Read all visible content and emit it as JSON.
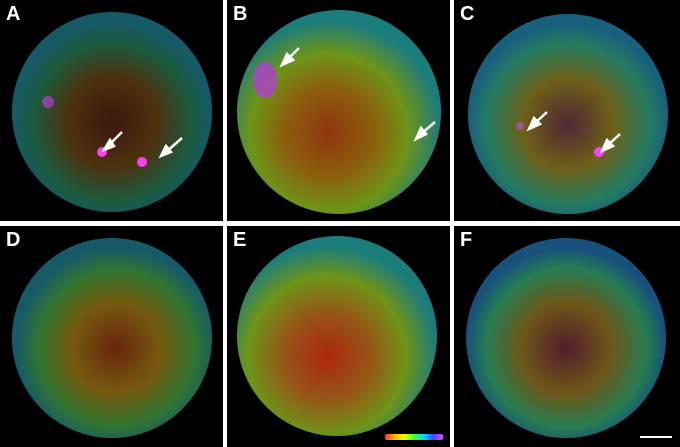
{
  "figure": {
    "panels": [
      {
        "label": "A",
        "arrows": 2
      },
      {
        "label": "B",
        "arrows": 2
      },
      {
        "label": "C",
        "arrows": 2
      },
      {
        "label": "D",
        "arrows": 0
      },
      {
        "label": "E",
        "arrows": 0
      },
      {
        "label": "F",
        "arrows": 0
      }
    ],
    "depth_colormap": [
      "#ff2d2d",
      "#ffb700",
      "#e8ff00",
      "#3cff3c",
      "#00d8ff",
      "#3a4dff",
      "#ff3df2"
    ],
    "background_color": "#000000",
    "label_color": "#ffffff"
  }
}
